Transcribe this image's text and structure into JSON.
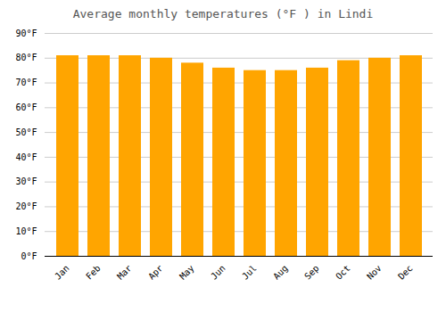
{
  "chart_data": {
    "type": "bar",
    "title": "Average monthly temperatures (°F ) in Lindi",
    "categories": [
      "Jan",
      "Feb",
      "Mar",
      "Apr",
      "May",
      "Jun",
      "Jul",
      "Aug",
      "Sep",
      "Oct",
      "Nov",
      "Dec"
    ],
    "values": [
      81,
      81,
      81,
      80,
      78,
      76,
      75,
      75,
      76,
      79,
      80,
      81
    ],
    "color": "#FFA500",
    "ylim": [
      0,
      90
    ],
    "yticks": [
      {
        "value": 0,
        "label": "0°F"
      },
      {
        "value": 10,
        "label": "10°F"
      },
      {
        "value": 20,
        "label": "20°F"
      },
      {
        "value": 30,
        "label": "30°F"
      },
      {
        "value": 40,
        "label": "40°F"
      },
      {
        "value": 50,
        "label": "50°F"
      },
      {
        "value": 60,
        "label": "60°F"
      },
      {
        "value": 70,
        "label": "70°F"
      },
      {
        "value": 80,
        "label": "80°F"
      },
      {
        "value": 90,
        "label": "90°F"
      }
    ],
    "grid": true
  }
}
